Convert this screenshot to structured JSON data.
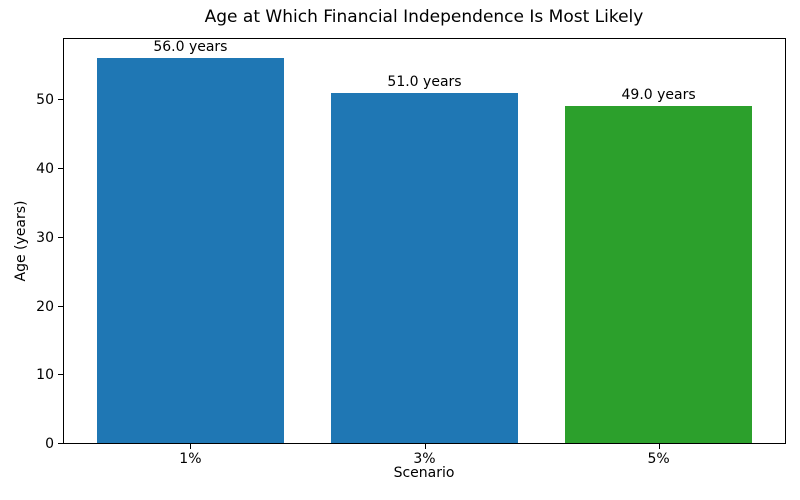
{
  "chart_data": {
    "type": "bar",
    "title": "Age at Which Financial Independence Is Most Likely",
    "xlabel": "Scenario",
    "ylabel": "Age (years)",
    "categories": [
      "1%",
      "3%",
      "5%"
    ],
    "values": [
      56.0,
      51.0,
      49.0
    ],
    "bar_labels": [
      "56.0 years",
      "51.0 years",
      "49.0 years"
    ],
    "bar_colors": [
      "#1f77b4",
      "#1f77b4",
      "#2ca02c"
    ],
    "ylim": [
      0,
      58.8
    ],
    "yticks": [
      0,
      10,
      20,
      30,
      40,
      50
    ],
    "bar_width_fraction": 0.8,
    "x_edge_margin": 0.54,
    "grid": false,
    "legend_position": "none",
    "background_color": "#ffffff",
    "frame_color": "#000000",
    "text_color": "#000000"
  }
}
